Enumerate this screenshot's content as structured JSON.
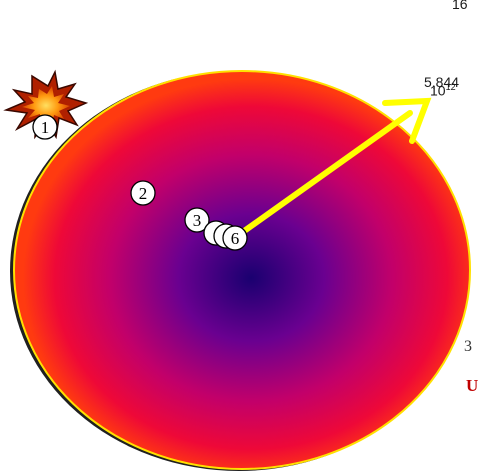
{
  "colors": {
    "center": "#1a0070",
    "middle": "#7a0090",
    "outer": "#e8003c",
    "edge": "#ff3a10",
    "rim": "#ffe000",
    "arrow": "#ffff00",
    "explosion_outer": "#b02000",
    "explosion_inner": "#ffa020",
    "marker_fill": "#ffffff",
    "clipped_red_text": "#c00000"
  },
  "markers": [
    {
      "label": "1",
      "kind": "explosion"
    },
    {
      "label": "2",
      "kind": "circle"
    },
    {
      "label": "3",
      "kind": "circle"
    },
    {
      "label": "",
      "kind": "circle"
    },
    {
      "label": "",
      "kind": "circle"
    },
    {
      "label": "6",
      "kind": "circle"
    }
  ],
  "clipped_text": {
    "top": "16",
    "distance": "5,844",
    "power_base": "10",
    "power_exp": "12",
    "mark": "3",
    "red": "U"
  },
  "icons": {
    "explosion": "explosion-icon",
    "arrow": "radius-arrow-icon"
  }
}
